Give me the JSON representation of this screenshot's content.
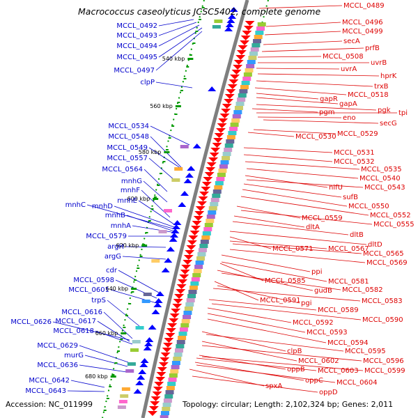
{
  "title": "Macrococcus caseolyticus JCSC5402, complete genome",
  "accession": "Accession: NC_011999",
  "topology": "Topology: circular; Length: 2,102,324 bp; Genes: 2,011",
  "colors": {
    "gene_label_left": "#0000cc",
    "gene_label_right": "#dd0000",
    "backbone": "#7f7f7f",
    "forward_arrow": "#0000ff",
    "reverse_arrow": "#ff0000",
    "tick": "#009900"
  },
  "scale": {
    "ticks": [
      {
        "label": "540 kbp",
        "pos": 540
      },
      {
        "label": "560 kbp",
        "pos": 560
      },
      {
        "label": "580 kbp",
        "pos": 580
      },
      {
        "label": "600 kbp",
        "pos": 600
      },
      {
        "label": "620 kbp",
        "pos": 620
      },
      {
        "label": "640 kbp",
        "pos": 640
      },
      {
        "label": "660 kbp",
        "pos": 660
      },
      {
        "label": "680 kbp",
        "pos": 680
      }
    ]
  },
  "genes_left": [
    {
      "name": "MCCL_0492"
    },
    {
      "name": "MCCL_0493"
    },
    {
      "name": "MCCL_0494"
    },
    {
      "name": "MCCL_0495"
    },
    {
      "name": "MCCL_0497"
    },
    {
      "name": "clpP"
    },
    {
      "name": "MCCL_0534"
    },
    {
      "name": "MCCL_0548"
    },
    {
      "name": "MCCL_0549"
    },
    {
      "name": "MCCL_0557"
    },
    {
      "name": "MCCL_0564"
    },
    {
      "name": "mnhG"
    },
    {
      "name": "mnhF"
    },
    {
      "name": "mnhE"
    },
    {
      "name": "mnhC"
    },
    {
      "name": "mnhD"
    },
    {
      "name": "mnhB"
    },
    {
      "name": "mnhA"
    },
    {
      "name": "MCCL_0579"
    },
    {
      "name": "argH"
    },
    {
      "name": "argG"
    },
    {
      "name": "cdr"
    },
    {
      "name": "MCCL_0598"
    },
    {
      "name": "MCCL_0601"
    },
    {
      "name": "trpS"
    },
    {
      "name": "MCCL_0616"
    },
    {
      "name": "MCCL_0626"
    },
    {
      "name": "MCCL_0617"
    },
    {
      "name": "MCCL_0618"
    },
    {
      "name": "MCCL_0629"
    },
    {
      "name": "murG"
    },
    {
      "name": "MCCL_0636"
    },
    {
      "name": "MCCL_0642"
    },
    {
      "name": "MCCL_0643"
    }
  ],
  "genes_right": [
    {
      "name": "MCCL_0489"
    },
    {
      "name": "MCCL_0496"
    },
    {
      "name": "MCCL_0499"
    },
    {
      "name": "secA"
    },
    {
      "name": "prfB"
    },
    {
      "name": "MCCL_0508"
    },
    {
      "name": "uvrB"
    },
    {
      "name": "uvrA"
    },
    {
      "name": "hprK"
    },
    {
      "name": "trxB"
    },
    {
      "name": "MCCL_0518"
    },
    {
      "name": "gapR"
    },
    {
      "name": "gapA"
    },
    {
      "name": "pgk"
    },
    {
      "name": "pgm"
    },
    {
      "name": "tpi"
    },
    {
      "name": "eno"
    },
    {
      "name": "secG"
    },
    {
      "name": "MCCL_0529"
    },
    {
      "name": "MCCL_0530"
    },
    {
      "name": "MCCL_0531"
    },
    {
      "name": "MCCL_0532"
    },
    {
      "name": "MCCL_0535"
    },
    {
      "name": "MCCL_0540"
    },
    {
      "name": "nifU"
    },
    {
      "name": "MCCL_0543"
    },
    {
      "name": "sufB"
    },
    {
      "name": "MCCL_0550"
    },
    {
      "name": "MCCL_0552"
    },
    {
      "name": "MCCL_0559"
    },
    {
      "name": "MCCL_0555"
    },
    {
      "name": "dltA"
    },
    {
      "name": "dltB"
    },
    {
      "name": "dltD"
    },
    {
      "name": "MCCL_0571"
    },
    {
      "name": "MCCL_0567"
    },
    {
      "name": "MCCL_0565"
    },
    {
      "name": "MCCL_0569"
    },
    {
      "name": "ppi"
    },
    {
      "name": "MCCL_0581"
    },
    {
      "name": "MCCL_0585"
    },
    {
      "name": "gudB"
    },
    {
      "name": "MCCL_0582"
    },
    {
      "name": "MCCL_0591"
    },
    {
      "name": "pgi"
    },
    {
      "name": "MCCL_0583"
    },
    {
      "name": "MCCL_0589"
    },
    {
      "name": "MCCL_0590"
    },
    {
      "name": "MCCL_0592"
    },
    {
      "name": "MCCL_0593"
    },
    {
      "name": "MCCL_0594"
    },
    {
      "name": "clpB"
    },
    {
      "name": "MCCL_0595"
    },
    {
      "name": "MCCL_0602"
    },
    {
      "name": "MCCL_0596"
    },
    {
      "name": "oppB"
    },
    {
      "name": "MCCL_0603"
    },
    {
      "name": "MCCL_0599"
    },
    {
      "name": "oppC"
    },
    {
      "name": "MCCL_0604"
    },
    {
      "name": "spxA"
    },
    {
      "name": "oppD"
    }
  ]
}
